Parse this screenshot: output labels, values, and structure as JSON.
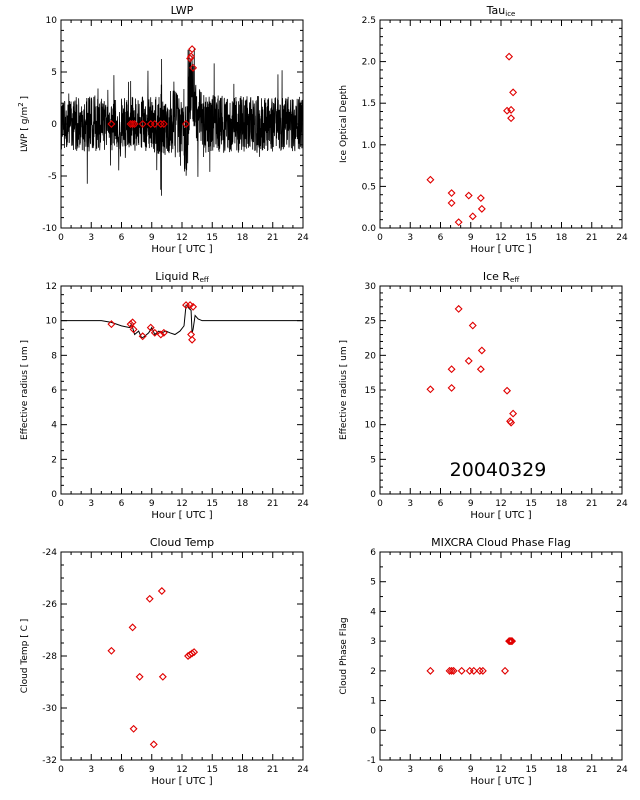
{
  "colors": {
    "marker": "#e00000",
    "axis": "#000000",
    "trace": "#000000"
  },
  "date_stamp": "20040329",
  "chart_data": [
    {
      "id": "lwp",
      "type": "line",
      "title": "LWP",
      "title_sub": "",
      "xlabel": "Hour",
      "xunit": "UTC",
      "ylabel": "LWP",
      "yunit": "g/m",
      "xlim": [
        0,
        24
      ],
      "ylim": [
        -10,
        10
      ],
      "xticks": [
        0,
        3,
        6,
        9,
        12,
        15,
        18,
        21,
        24
      ],
      "yticks": [
        -10,
        -5,
        0,
        5,
        10
      ],
      "series": [
        {
          "kind": "noise",
          "t": [
            0,
            3,
            6,
            9,
            11.3,
            12,
            12.5,
            12.8,
            13.2,
            14,
            24
          ],
          "amp": [
            2.5,
            2.7,
            2.5,
            2.8,
            3.3,
            3.3,
            3.5,
            5,
            3,
            2.8,
            2.6
          ],
          "center": [
            0,
            0,
            0,
            0,
            0,
            -1.2,
            -2,
            5,
            2,
            0,
            0
          ]
        },
        {
          "kind": "markers",
          "x": [
            5.0,
            6.9,
            7.1,
            7.3,
            8.1,
            8.9,
            9.3,
            9.9,
            10.2,
            12.4,
            12.8,
            12.9,
            13.0,
            13.1
          ],
          "y": [
            0,
            0,
            0,
            0,
            0,
            0,
            0,
            0,
            0,
            0,
            6.3,
            6.5,
            7.2,
            5.4
          ]
        }
      ]
    },
    {
      "id": "tau",
      "type": "scatter",
      "title": "Tau",
      "title_sub": "ice",
      "xlabel": "Hour",
      "xunit": "UTC",
      "ylabel": "Ice Optical Depth",
      "yunit": "",
      "xlim": [
        0,
        24
      ],
      "ylim": [
        0,
        2.5
      ],
      "xticks": [
        0,
        3,
        6,
        9,
        12,
        15,
        18,
        21,
        24
      ],
      "yticks": [
        0,
        0.5,
        1.0,
        1.5,
        2.0,
        2.5
      ],
      "ytick_labels": [
        "0.0",
        "0.5",
        "1.0",
        "1.5",
        "2.0",
        "2.5"
      ],
      "series": [
        {
          "kind": "markers",
          "x": [
            5.0,
            7.1,
            7.1,
            7.8,
            8.8,
            9.2,
            10.0,
            10.1,
            12.6,
            12.8,
            13.0,
            13.0,
            13.2
          ],
          "y": [
            0.58,
            0.42,
            0.3,
            0.07,
            0.39,
            0.14,
            0.36,
            0.23,
            1.41,
            2.06,
            1.42,
            1.32,
            1.63
          ]
        }
      ]
    },
    {
      "id": "liq_reff",
      "type": "line",
      "title": "Liquid R",
      "title_sub": "eff",
      "xlabel": "Hour",
      "xunit": "UTC",
      "ylabel": "Effective radius",
      "yunit": "um",
      "xlim": [
        0,
        24
      ],
      "ylim": [
        0,
        12
      ],
      "xticks": [
        0,
        3,
        6,
        9,
        12,
        15,
        18,
        21,
        24
      ],
      "yticks": [
        0,
        2,
        4,
        6,
        8,
        10,
        12
      ],
      "series": [
        {
          "kind": "line",
          "x": [
            0,
            4.0,
            5.0,
            6.0,
            6.8,
            7.0,
            7.3,
            7.7,
            8.0,
            8.3,
            8.7,
            9.0,
            9.3,
            9.7,
            10.0,
            10.4,
            10.8,
            11.3,
            11.8,
            12.2,
            12.4,
            12.5,
            12.7,
            12.9,
            13.0,
            13.1,
            13.3,
            13.6,
            14.0,
            14.5,
            16,
            24
          ],
          "y": [
            10.0,
            10.0,
            9.9,
            9.7,
            9.6,
            9.8,
            9.2,
            9.4,
            9.0,
            9.1,
            9.3,
            9.6,
            9.2,
            9.4,
            9.3,
            9.4,
            9.3,
            9.2,
            9.4,
            9.7,
            10.9,
            10.9,
            10.7,
            10.6,
            9.3,
            9.5,
            10.3,
            10.1,
            10.0,
            10.0,
            10.0,
            10.0
          ]
        },
        {
          "kind": "markers",
          "x": [
            5.0,
            6.9,
            7.1,
            7.2,
            8.1,
            8.9,
            9.3,
            9.9,
            10.2,
            12.4,
            12.8,
            12.9,
            13.0,
            13.1
          ],
          "y": [
            9.8,
            9.8,
            9.9,
            9.5,
            9.1,
            9.6,
            9.3,
            9.2,
            9.3,
            10.9,
            10.9,
            9.2,
            8.9,
            10.8
          ]
        }
      ]
    },
    {
      "id": "ice_reff",
      "type": "scatter",
      "title": "Ice R",
      "title_sub": "eff",
      "xlabel": "Hour",
      "xunit": "UTC",
      "ylabel": "Effective radius",
      "yunit": "um",
      "xlim": [
        0,
        24
      ],
      "ylim": [
        0,
        30
      ],
      "xticks": [
        0,
        3,
        6,
        9,
        12,
        15,
        18,
        21,
        24
      ],
      "yticks": [
        0,
        5,
        10,
        15,
        20,
        25,
        30
      ],
      "series": [
        {
          "kind": "markers",
          "x": [
            5.0,
            7.1,
            7.1,
            7.8,
            8.8,
            9.2,
            10.0,
            10.1,
            12.6,
            12.9,
            13.0,
            13.2
          ],
          "y": [
            15.1,
            18.0,
            15.3,
            26.7,
            19.2,
            24.3,
            18.0,
            20.7,
            14.9,
            10.5,
            10.3,
            11.6
          ]
        }
      ]
    },
    {
      "id": "cloud_temp",
      "type": "scatter",
      "title": "Cloud Temp",
      "title_sub": "",
      "xlabel": "Hour",
      "xunit": "UTC",
      "ylabel": "Cloud Temp",
      "yunit": "C",
      "xlim": [
        0,
        24
      ],
      "ylim": [
        -32,
        -24
      ],
      "xticks": [
        0,
        3,
        6,
        9,
        12,
        15,
        18,
        21,
        24
      ],
      "yticks": [
        -32,
        -30,
        -28,
        -26,
        -24
      ],
      "series": [
        {
          "kind": "markers",
          "x": [
            5.0,
            7.1,
            7.2,
            7.8,
            8.8,
            9.2,
            10.0,
            10.1,
            12.6,
            12.8,
            13.0,
            13.2
          ],
          "y": [
            -27.8,
            -26.9,
            -30.8,
            -28.8,
            -25.8,
            -31.4,
            -25.5,
            -28.8,
            -28.0,
            -27.95,
            -27.9,
            -27.85
          ]
        }
      ]
    },
    {
      "id": "phase_flag",
      "type": "scatter",
      "title": "MIXCRA Cloud Phase Flag",
      "title_sub": "",
      "xlabel": "Hour",
      "xunit": "UTC",
      "ylabel": "Cloud Phase Flag",
      "yunit": "",
      "xlim": [
        0,
        24
      ],
      "ylim": [
        -1,
        6
      ],
      "xticks": [
        0,
        3,
        6,
        9,
        12,
        15,
        18,
        21,
        24
      ],
      "yticks": [
        -1,
        0,
        1,
        2,
        3,
        4,
        5,
        6
      ],
      "series": [
        {
          "kind": "markers",
          "x": [
            5.0,
            6.9,
            7.1,
            7.3,
            8.1,
            8.9,
            9.3,
            9.9,
            10.2,
            12.4,
            12.8,
            12.9,
            13.0,
            13.1
          ],
          "y": [
            2,
            2,
            2,
            2,
            2,
            2,
            2,
            2,
            2,
            2,
            3,
            3,
            3,
            3
          ]
        }
      ]
    }
  ]
}
